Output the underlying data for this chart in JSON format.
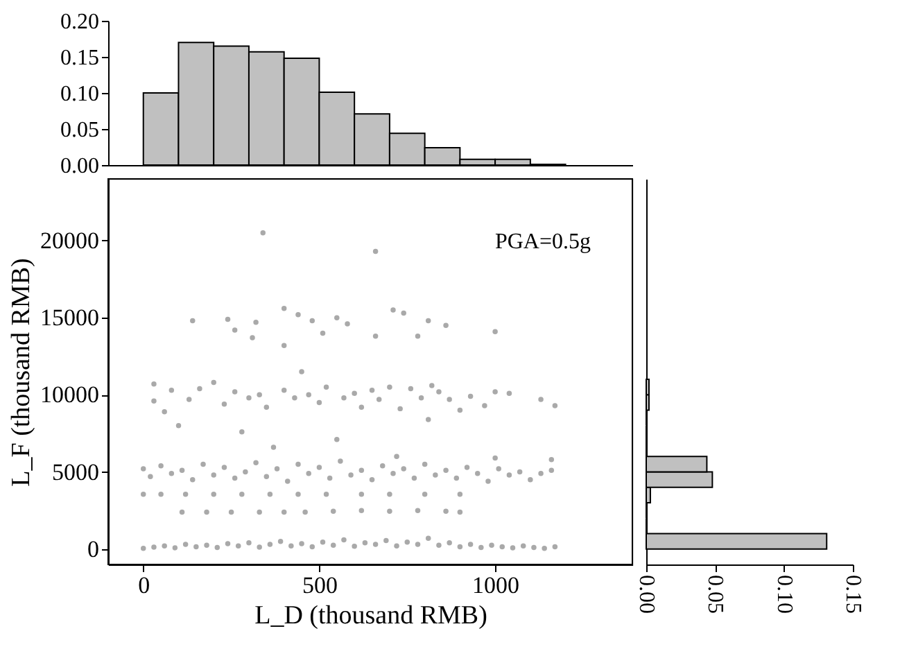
{
  "chart_data": [
    {
      "type": "histogram",
      "bins": [
        0,
        100,
        200,
        300,
        400,
        500,
        600,
        700,
        800,
        900,
        1000,
        1100,
        1200
      ],
      "values": [
        0.1,
        0.17,
        0.165,
        0.157,
        0.148,
        0.101,
        0.071,
        0.044,
        0.024,
        0.008,
        0.008,
        0.001
      ],
      "color": "#c0c0c0",
      "xlim": [
        -100,
        1390
      ],
      "ylim": [
        0,
        0.2
      ],
      "yticks": [
        {
          "value": 0,
          "label": "0.00"
        },
        {
          "value": 0.05,
          "label": "0.05"
        },
        {
          "value": 0.1,
          "label": "0.10"
        },
        {
          "value": 0.15,
          "label": "0.15"
        },
        {
          "value": 0.2,
          "label": "0.20"
        }
      ],
      "tick_labels": "y",
      "grid": false
    },
    {
      "type": "scatter",
      "xlabel": "L_D (thousand RMB)",
      "ylabel": "L_F (thousand RMB)",
      "annotations": [
        "PGA=0.5g"
      ],
      "xlim": [
        -100,
        1390
      ],
      "ylim": [
        -1000,
        24000
      ],
      "xticks": [
        0,
        500,
        1000
      ],
      "yticks": [
        0,
        5000,
        10000,
        15000,
        20000
      ],
      "marker": "circle",
      "grid": false,
      "series": [
        {
          "color": "#404040",
          "x": [
            0,
            30,
            60,
            90,
            120,
            150,
            180,
            210,
            240,
            270,
            300,
            330,
            360,
            390,
            420,
            450,
            480,
            510,
            540,
            570,
            600,
            630,
            660,
            690,
            720,
            750,
            780,
            810,
            840,
            870,
            900,
            930,
            960,
            990,
            1020,
            1050,
            1080,
            1110,
            1140,
            1170,
            0,
            20,
            50,
            80,
            110,
            140,
            170,
            200,
            230,
            260,
            290,
            320,
            350,
            380,
            410,
            440,
            470,
            500,
            530,
            560,
            590,
            620,
            650,
            680,
            710,
            740,
            770,
            800,
            830,
            860,
            890,
            920,
            950,
            980,
            1010,
            1040,
            1070,
            1100,
            1130,
            1160,
            1000,
            1160,
            720,
            0,
            50,
            120,
            200,
            280,
            360,
            440,
            520,
            620,
            700,
            800,
            900,
            110,
            180,
            250,
            330,
            400,
            460,
            540,
            620,
            700,
            780,
            860,
            900,
            30,
            30,
            60,
            80,
            100,
            130,
            160,
            200,
            230,
            260,
            280,
            300,
            330,
            350,
            370,
            400,
            430,
            450,
            470,
            500,
            520,
            550,
            570,
            600,
            620,
            650,
            670,
            700,
            730,
            760,
            790,
            810,
            840,
            870,
            900,
            930,
            970,
            1000,
            1040,
            1130,
            1170,
            820,
            140,
            240,
            260,
            310,
            320,
            400,
            400,
            440,
            480,
            510,
            550,
            580,
            660,
            710,
            740,
            780,
            810,
            860,
            1000,
            340,
            660
          ],
          "values": [
            50,
            120,
            200,
            80,
            300,
            150,
            250,
            100,
            350,
            200,
            400,
            120,
            300,
            500,
            200,
            350,
            150,
            450,
            250,
            600,
            180,
            400,
            300,
            550,
            200,
            450,
            300,
            700,
            250,
            400,
            150,
            300,
            100,
            250,
            150,
            80,
            200,
            100,
            50,
            150,
            5200,
            4700,
            5400,
            4900,
            5100,
            4500,
            5500,
            4800,
            5300,
            4600,
            5000,
            5600,
            4700,
            5200,
            4400,
            5500,
            4900,
            5300,
            4600,
            5700,
            4800,
            5100,
            4500,
            5400,
            4900,
            5200,
            4600,
            5500,
            4800,
            5100,
            4600,
            5300,
            4900,
            4400,
            5200,
            4800,
            5000,
            4500,
            4900,
            5100,
            5900,
            5800,
            6000,
            3550,
            3550,
            3550,
            3550,
            3550,
            3550,
            3550,
            3550,
            3550,
            3550,
            3550,
            3550,
            2400,
            2400,
            2400,
            2400,
            2400,
            2400,
            2450,
            2500,
            2450,
            2500,
            2450,
            2400,
            10700,
            9600,
            8900,
            10300,
            8000,
            9700,
            10400,
            10800,
            9400,
            10200,
            7600,
            9800,
            10000,
            9200,
            6600,
            10300,
            9800,
            11500,
            10000,
            9500,
            10500,
            7100,
            9800,
            10100,
            9200,
            10300,
            9700,
            10500,
            9100,
            10400,
            9800,
            8400,
            10200,
            9700,
            9000,
            9900,
            9300,
            10200,
            10100,
            9700,
            9300,
            10600,
            14800,
            14900,
            14200,
            13700,
            14700,
            15600,
            13200,
            15200,
            14800,
            14000,
            15000,
            14600,
            13800,
            15500,
            15300,
            13800,
            14800,
            14500,
            14100,
            20500,
            19300
          ]
        }
      ]
    },
    {
      "type": "histogram",
      "orientation": "horizontal",
      "bins": [
        0,
        1000,
        2000,
        3000,
        4000,
        5000,
        6000,
        7000,
        8000,
        9000,
        10000,
        11000
      ],
      "values": [
        0.131,
        0,
        null,
        0.003,
        0.048,
        0.044,
        0,
        0,
        0,
        0.002,
        0.002
      ],
      "color": "#c0c0c0",
      "xlim": [
        0,
        0.15
      ],
      "ylim": [
        -1000,
        24000
      ],
      "xticks": [
        {
          "value": 0,
          "label": "0.00"
        },
        {
          "value": 0.05,
          "label": "0.05"
        },
        {
          "value": 0.1,
          "label": "0.10"
        },
        {
          "value": 0.15,
          "label": "0.15"
        }
      ],
      "tick_labels": "x",
      "grid": false
    }
  ]
}
